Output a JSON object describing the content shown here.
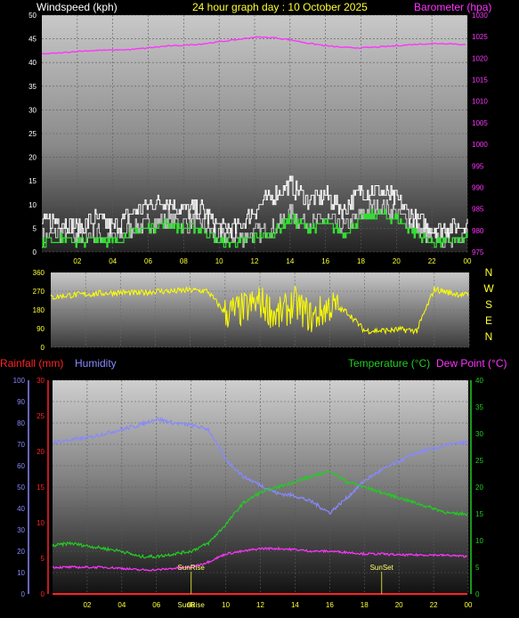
{
  "header": {
    "left_title": "Windspeed (kph)",
    "center_title": "24 hour graph day : 10 October 2025",
    "right_title": "Barometer (hpa)"
  },
  "lower_header": {
    "rainfall": "Rainfall (mm)",
    "humidity": "Humidity",
    "temperature": "Temperature (°C)",
    "dew_point": "Dew Point (°C)"
  },
  "x_ticks": [
    "02",
    "04",
    "06",
    "08",
    "10",
    "12",
    "14",
    "16",
    "18",
    "20",
    "22",
    "00"
  ],
  "markers": {
    "sunrise": "SunRise",
    "sunset": "SunSet"
  },
  "colors": {
    "wind": "#ffffff",
    "gust": "#cccccc",
    "wind_avg": "#33dd33",
    "barometer": "#ff33ff",
    "direction": "#ffff00",
    "humidity": "#8888ff",
    "temperature": "#22cc22",
    "dew_point": "#ff33ff",
    "rainfall": "#ff2222"
  },
  "chart_data": [
    {
      "type": "line",
      "x_hours": [
        0,
        1,
        2,
        3,
        4,
        5,
        6,
        7,
        8,
        9,
        10,
        11,
        12,
        13,
        14,
        15,
        16,
        17,
        18,
        19,
        20,
        21,
        22,
        23,
        24
      ],
      "series": [
        {
          "values": [
            3,
            4,
            3,
            4,
            3,
            5,
            6,
            7,
            6,
            6,
            3,
            3,
            4,
            5,
            8,
            6,
            7,
            5,
            8,
            10,
            8,
            5,
            3,
            3,
            4
          ]
        },
        {
          "values": [
            6,
            7,
            5,
            7,
            5,
            8,
            10,
            11,
            9,
            9,
            5,
            5,
            9,
            12,
            14,
            11,
            12,
            9,
            13,
            13,
            11,
            7,
            5,
            5,
            6
          ]
        },
        {
          "values": [
            2,
            3,
            2,
            3,
            2,
            4,
            5,
            6,
            5,
            5,
            2,
            2,
            3,
            4,
            7,
            5,
            6,
            4,
            7,
            8,
            7,
            4,
            2,
            2,
            3
          ]
        }
      ],
      "ylim": [
        0,
        50
      ],
      "y_ticks": [
        0,
        5,
        10,
        15,
        20,
        25,
        30,
        35,
        40,
        45,
        50
      ]
    },
    {
      "type": "line",
      "x_hours": [
        0,
        1,
        2,
        3,
        4,
        5,
        6,
        7,
        8,
        9,
        10,
        11,
        12,
        13,
        14,
        15,
        16,
        17,
        18,
        19,
        20,
        21,
        22,
        23,
        24
      ],
      "values": [
        1021,
        1021.2,
        1021.6,
        1021.8,
        1021.9,
        1022,
        1022.4,
        1022.8,
        1023,
        1023.3,
        1023.8,
        1024.3,
        1024.9,
        1024.8,
        1024.3,
        1023.5,
        1022.9,
        1022.5,
        1022.4,
        1022.6,
        1022.9,
        1023.2,
        1023.4,
        1023.4,
        1023.1
      ],
      "ylim": [
        975,
        1030
      ],
      "y_ticks": [
        975,
        980,
        985,
        990,
        995,
        1000,
        1005,
        1010,
        1015,
        1020,
        1025,
        1030
      ]
    },
    {
      "type": "scatter",
      "x_hours": [
        0,
        1,
        2,
        3,
        4,
        5,
        6,
        7,
        8,
        9,
        10,
        11,
        12,
        13,
        14,
        15,
        16,
        17,
        18,
        19,
        20,
        21,
        22,
        23,
        24
      ],
      "values": [
        240,
        250,
        255,
        260,
        265,
        260,
        270,
        270,
        275,
        270,
        165,
        180,
        220,
        150,
        210,
        140,
        200,
        170,
        80,
        80,
        85,
        80,
        280,
        260,
        250
      ],
      "ylim": [
        0,
        360
      ],
      "y_ticks": [
        0,
        90,
        180,
        270,
        360
      ],
      "compass": [
        "N",
        "W",
        "S",
        "E",
        "N"
      ]
    },
    {
      "type": "line",
      "x_hours": [
        0,
        1,
        2,
        3,
        4,
        5,
        6,
        7,
        8,
        9,
        10,
        11,
        12,
        13,
        14,
        15,
        16,
        17,
        18,
        19,
        20,
        21,
        22,
        23,
        24
      ],
      "series": [
        {
          "values": [
            71,
            72,
            73,
            75,
            77,
            79,
            82,
            80,
            79,
            77,
            63,
            55,
            51,
            47,
            46,
            43,
            38,
            45,
            53,
            58,
            62,
            66,
            68,
            70,
            71
          ]
        },
        {
          "values": [
            9,
            9.5,
            9,
            8.5,
            8,
            7,
            7,
            7.5,
            8,
            9.5,
            13,
            17,
            19,
            20,
            21,
            22,
            23,
            21,
            20,
            19,
            18,
            17,
            16,
            15,
            15
          ]
        },
        {
          "values": [
            5,
            5,
            5,
            5,
            4.8,
            4.5,
            4.5,
            4.8,
            5,
            6,
            7.5,
            8,
            8.5,
            8.5,
            8.3,
            8,
            8,
            7.8,
            7.5,
            7.5,
            7.3,
            7.3,
            7.3,
            7.2,
            7
          ]
        },
        {
          "values": [
            0,
            0,
            0,
            0,
            0,
            0,
            0,
            0,
            0,
            0,
            0,
            0,
            0,
            0,
            0,
            0,
            0,
            0,
            0,
            0,
            0,
            0,
            0,
            0,
            0
          ]
        }
      ],
      "y_ticks_humidity": [
        0,
        10,
        20,
        30,
        40,
        50,
        60,
        70,
        80,
        90,
        100
      ],
      "y_ticks_rain": [
        0,
        5,
        10,
        15,
        20,
        25,
        30
      ],
      "y_ticks_temp": [
        0,
        5,
        10,
        15,
        20,
        25,
        30,
        35,
        40
      ],
      "humidity_lim": [
        0,
        100
      ],
      "rain_lim": [
        0,
        30
      ],
      "temp_lim": [
        0,
        40
      ],
      "sunrise_hour": 8.0,
      "sunset_hour": 19.0
    }
  ]
}
